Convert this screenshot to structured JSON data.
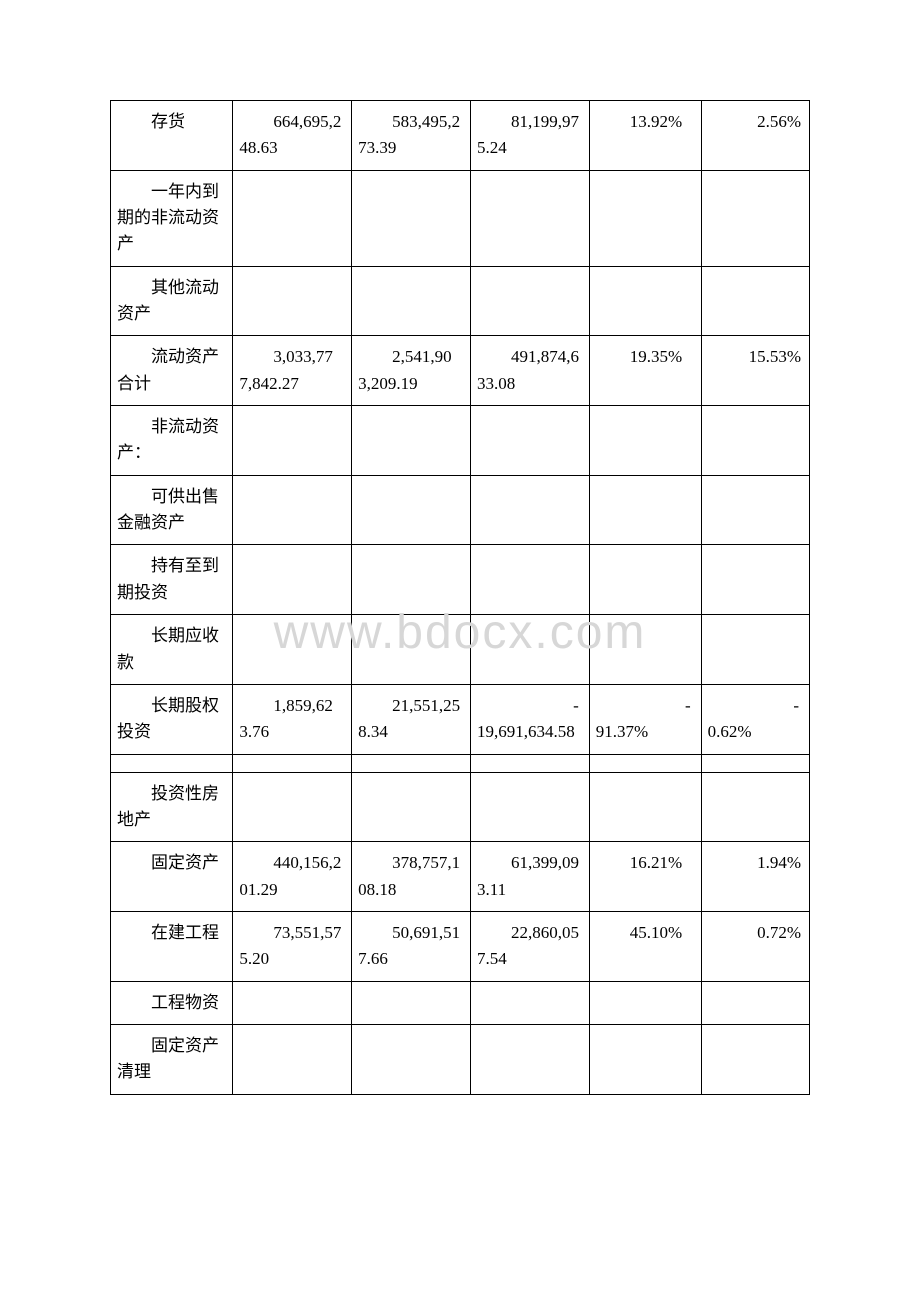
{
  "watermark": "www.bdocx.com",
  "cols": {
    "c0_w": "17.5%",
    "c1_w": "17%",
    "c2_w": "17%",
    "c3_w": "17%",
    "c4_w": "16%",
    "c5_w": "15.5%"
  },
  "rows": [
    {
      "label": "存货",
      "c1": "664,695,248.63",
      "c2": "583,495,273.39",
      "c3": "81,199,975.24",
      "c4": "13.92%",
      "c5": "2.56%"
    },
    {
      "label": "一年内到期的非流动资产",
      "c1": "",
      "c2": "",
      "c3": "",
      "c4": "",
      "c5": ""
    },
    {
      "label": "其他流动资产",
      "c1": "",
      "c2": "",
      "c3": "",
      "c4": "",
      "c5": ""
    },
    {
      "label": "流动资产合计",
      "c1": "3,033,777,842.27",
      "c2": "2,541,903,209.19",
      "c3": "491,874,633.08",
      "c4": "19.35%",
      "c5": "15.53%"
    },
    {
      "label": "非流动资产：",
      "c1": "",
      "c2": "",
      "c3": "",
      "c4": "",
      "c5": ""
    },
    {
      "label": "可供出售金融资产",
      "c1": "",
      "c2": "",
      "c3": "",
      "c4": "",
      "c5": ""
    },
    {
      "label": "持有至到期投资",
      "c1": "",
      "c2": "",
      "c3": "",
      "c4": "",
      "c5": ""
    },
    {
      "label": "长期应收款",
      "c1": "",
      "c2": "",
      "c3": "",
      "c4": "",
      "c5": ""
    },
    {
      "label": "长期股权投资",
      "c1": "1,859,623.76",
      "c2": "21,551,258.34",
      "c3_neg": "19,691,634.58",
      "c4_neg": "91.37%",
      "c5_neg": "0.62%"
    },
    {
      "spacer": true
    },
    {
      "label": "投资性房地产",
      "c1": "",
      "c2": "",
      "c3": "",
      "c4": "",
      "c5": ""
    },
    {
      "label": "固定资产",
      "c1": "440,156,201.29",
      "c2": "378,757,108.18",
      "c3": "61,399,093.11",
      "c4": "16.21%",
      "c5": "1.94%"
    },
    {
      "label": "在建工程",
      "c1": "73,551,575.20",
      "c2": "50,691,517.66",
      "c3": "22,860,057.54",
      "c4": "45.10%",
      "c5": "0.72%"
    },
    {
      "label": "工程物资",
      "c1": "",
      "c2": "",
      "c3": "",
      "c4": "",
      "c5": ""
    },
    {
      "label": "固定资产清理",
      "c1": "",
      "c2": "",
      "c3": "",
      "c4": "",
      "c5": ""
    }
  ]
}
